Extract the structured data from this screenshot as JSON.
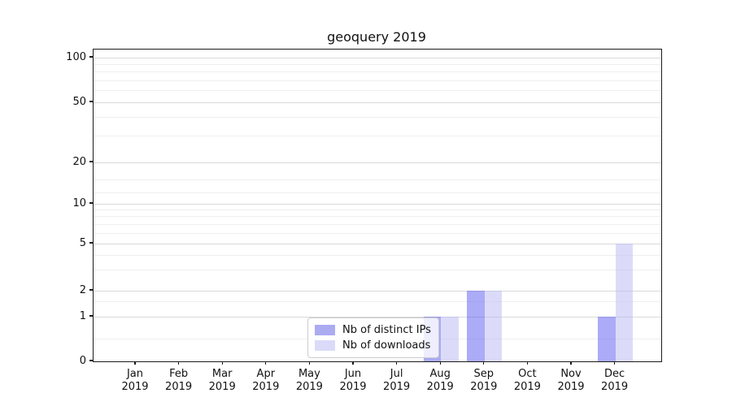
{
  "chart_data": {
    "type": "bar",
    "title": "geoquery 2019",
    "categories": [
      "Jan 2019",
      "Feb 2019",
      "Mar 2019",
      "Apr 2019",
      "May 2019",
      "Jun 2019",
      "Jul 2019",
      "Aug 2019",
      "Sep 2019",
      "Oct 2019",
      "Nov 2019",
      "Dec 2019"
    ],
    "x_tick_month": [
      "Jan",
      "Feb",
      "Mar",
      "Apr",
      "May",
      "Jun",
      "Jul",
      "Aug",
      "Sep",
      "Oct",
      "Nov",
      "Dec"
    ],
    "x_tick_year": "2019",
    "series": [
      {
        "name": "Nb of distinct IPs",
        "color": "rgba(88,88,240,0.5)",
        "swatch": "#ababf2",
        "values": [
          0,
          0,
          0,
          0,
          0,
          0,
          0,
          1,
          2,
          0,
          0,
          1
        ]
      },
      {
        "name": "Nb of downloads",
        "color": "rgba(183,183,243,0.5)",
        "swatch": "#dbdbf9",
        "values": [
          0,
          0,
          0,
          0,
          0,
          0,
          0,
          1,
          2,
          0,
          0,
          5
        ]
      }
    ],
    "y_axis": {
      "scale": "symlog",
      "major_ticks": [
        0,
        1,
        2,
        5,
        10,
        20,
        50,
        100
      ],
      "minor_ticks": [
        0.5,
        1.5,
        3,
        4,
        6,
        7,
        8,
        9,
        12,
        15,
        30,
        40,
        60,
        70,
        80,
        90
      ],
      "range": [
        0,
        120
      ]
    },
    "grid": true,
    "legend_position": "lower center",
    "colors": {
      "major_grid": "#d9d9d9",
      "minor_grid": "#efefef",
      "axis": "#1a1a1a",
      "background": "#ffffff"
    }
  }
}
